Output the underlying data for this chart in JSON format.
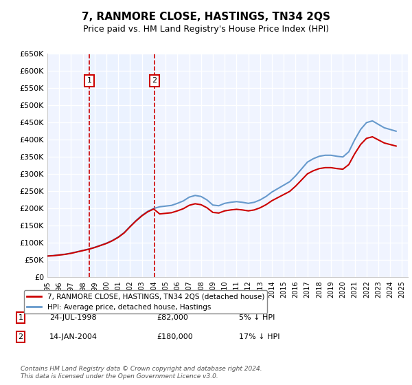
{
  "title": "7, RANMORE CLOSE, HASTINGS, TN34 2QS",
  "subtitle": "Price paid vs. HM Land Registry's House Price Index (HPI)",
  "ylabel": "",
  "xlabel": "",
  "ylim": [
    0,
    650000
  ],
  "yticks": [
    0,
    50000,
    100000,
    150000,
    200000,
    250000,
    300000,
    350000,
    400000,
    450000,
    500000,
    550000,
    600000,
    650000
  ],
  "ytick_labels": [
    "£0",
    "£50K",
    "£100K",
    "£150K",
    "£200K",
    "£250K",
    "£300K",
    "£350K",
    "£400K",
    "£450K",
    "£500K",
    "£550K",
    "£600K",
    "£650K"
  ],
  "xlim_start": 1995.0,
  "xlim_end": 2025.5,
  "background_color": "#ffffff",
  "plot_bg_color": "#f0f4ff",
  "grid_color": "#ffffff",
  "transaction1": {
    "year": 1998.56,
    "price": 82000,
    "label": "1",
    "date": "24-JUL-1998",
    "amount": "£82,000",
    "note": "5% ↓ HPI"
  },
  "transaction2": {
    "year": 2004.04,
    "price": 180000,
    "label": "2",
    "date": "14-JAN-2004",
    "amount": "£180,000",
    "note": "17% ↓ HPI"
  },
  "legend_line1": "7, RANMORE CLOSE, HASTINGS, TN34 2QS (detached house)",
  "legend_line2": "HPI: Average price, detached house, Hastings",
  "footer": "Contains HM Land Registry data © Crown copyright and database right 2024.\nThis data is licensed under the Open Government Licence v3.0.",
  "line_color_red": "#cc0000",
  "line_color_blue": "#6699cc",
  "marker_box_color": "#cc0000",
  "dashed_line_color": "#cc0000",
  "shade_color": "#ddeeff"
}
